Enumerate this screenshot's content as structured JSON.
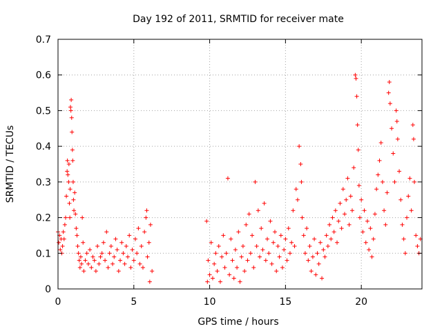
{
  "chart_data": {
    "type": "scatter",
    "title": "Day 192 of 2011, SRMTID for receiver mate",
    "xlabel": "GPS time / hours",
    "ylabel": "SRMTID / TECUs",
    "xlim": [
      0,
      24
    ],
    "ylim": [
      0,
      0.7
    ],
    "xticks": [
      0,
      5,
      10,
      15,
      20
    ],
    "yticks": [
      0,
      0.1,
      0.2,
      0.3,
      0.4,
      0.5,
      0.6,
      0.7
    ],
    "grid": true,
    "marker": "+",
    "color": "#ff0000",
    "series": [
      {
        "name": "SRMTID",
        "points": [
          [
            0.0,
            0.16
          ],
          [
            0.05,
            0.13
          ],
          [
            0.1,
            0.15
          ],
          [
            0.15,
            0.11
          ],
          [
            0.2,
            0.14
          ],
          [
            0.25,
            0.1
          ],
          [
            0.3,
            0.12
          ],
          [
            0.35,
            0.16
          ],
          [
            0.4,
            0.14
          ],
          [
            0.45,
            0.18
          ],
          [
            0.5,
            0.2
          ],
          [
            0.55,
            0.26
          ],
          [
            0.6,
            0.33
          ],
          [
            0.62,
            0.36
          ],
          [
            0.65,
            0.32
          ],
          [
            0.7,
            0.3
          ],
          [
            0.72,
            0.35
          ],
          [
            0.75,
            0.24
          ],
          [
            0.78,
            0.2
          ],
          [
            0.8,
            0.28
          ],
          [
            0.82,
            0.51
          ],
          [
            0.85,
            0.5
          ],
          [
            0.87,
            0.53
          ],
          [
            0.9,
            0.48
          ],
          [
            0.92,
            0.44
          ],
          [
            0.95,
            0.39
          ],
          [
            0.97,
            0.36
          ],
          [
            1.0,
            0.3
          ],
          [
            1.02,
            0.25
          ],
          [
            1.05,
            0.22
          ],
          [
            1.1,
            0.27
          ],
          [
            1.15,
            0.21
          ],
          [
            1.2,
            0.17
          ],
          [
            1.25,
            0.15
          ],
          [
            1.3,
            0.12
          ],
          [
            1.35,
            0.1
          ],
          [
            1.4,
            0.08
          ],
          [
            1.45,
            0.06
          ],
          [
            1.5,
            0.09
          ],
          [
            1.55,
            0.07
          ],
          [
            1.6,
            0.2
          ],
          [
            1.65,
            0.13
          ],
          [
            1.7,
            0.05
          ],
          [
            1.8,
            0.08
          ],
          [
            1.9,
            0.1
          ],
          [
            2.0,
            0.07
          ],
          [
            2.1,
            0.11
          ],
          [
            2.2,
            0.06
          ],
          [
            2.3,
            0.09
          ],
          [
            2.4,
            0.08
          ],
          [
            2.5,
            0.05
          ],
          [
            2.6,
            0.12
          ],
          [
            2.7,
            0.07
          ],
          [
            2.8,
            0.09
          ],
          [
            2.9,
            0.1
          ],
          [
            3.0,
            0.13
          ],
          [
            3.1,
            0.08
          ],
          [
            3.2,
            0.16
          ],
          [
            3.3,
            0.06
          ],
          [
            3.4,
            0.1
          ],
          [
            3.5,
            0.12
          ],
          [
            3.6,
            0.07
          ],
          [
            3.7,
            0.09
          ],
          [
            3.8,
            0.14
          ],
          [
            3.9,
            0.11
          ],
          [
            4.0,
            0.05
          ],
          [
            4.1,
            0.08
          ],
          [
            4.2,
            0.13
          ],
          [
            4.3,
            0.1
          ],
          [
            4.4,
            0.07
          ],
          [
            4.5,
            0.12
          ],
          [
            4.6,
            0.09
          ],
          [
            4.7,
            0.15
          ],
          [
            4.8,
            0.06
          ],
          [
            4.9,
            0.11
          ],
          [
            5.0,
            0.08
          ],
          [
            5.1,
            0.14
          ],
          [
            5.2,
            0.1
          ],
          [
            5.3,
            0.17
          ],
          [
            5.4,
            0.07
          ],
          [
            5.5,
            0.12
          ],
          [
            5.6,
            0.06
          ],
          [
            5.7,
            0.16
          ],
          [
            5.8,
            0.2
          ],
          [
            5.85,
            0.22
          ],
          [
            5.9,
            0.09
          ],
          [
            6.0,
            0.13
          ],
          [
            6.05,
            0.02
          ],
          [
            6.1,
            0.18
          ],
          [
            6.2,
            0.05
          ],
          [
            9.8,
            0.19
          ],
          [
            9.85,
            0.02
          ],
          [
            9.9,
            0.08
          ],
          [
            10.0,
            0.04
          ],
          [
            10.1,
            0.13
          ],
          [
            10.2,
            0.03
          ],
          [
            10.3,
            0.07
          ],
          [
            10.4,
            0.1
          ],
          [
            10.5,
            0.05
          ],
          [
            10.6,
            0.12
          ],
          [
            10.7,
            0.02
          ],
          [
            10.8,
            0.09
          ],
          [
            10.9,
            0.15
          ],
          [
            11.0,
            0.06
          ],
          [
            11.1,
            0.1
          ],
          [
            11.2,
            0.31
          ],
          [
            11.3,
            0.04
          ],
          [
            11.4,
            0.14
          ],
          [
            11.5,
            0.08
          ],
          [
            11.6,
            0.03
          ],
          [
            11.7,
            0.11
          ],
          [
            11.8,
            0.06
          ],
          [
            11.9,
            0.16
          ],
          [
            12.0,
            0.02
          ],
          [
            12.1,
            0.09
          ],
          [
            12.2,
            0.12
          ],
          [
            12.3,
            0.05
          ],
          [
            12.4,
            0.18
          ],
          [
            12.5,
            0.08
          ],
          [
            12.6,
            0.21
          ],
          [
            12.7,
            0.1
          ],
          [
            12.8,
            0.15
          ],
          [
            12.9,
            0.06
          ],
          [
            13.0,
            0.3
          ],
          [
            13.1,
            0.12
          ],
          [
            13.2,
            0.22
          ],
          [
            13.3,
            0.09
          ],
          [
            13.4,
            0.17
          ],
          [
            13.5,
            0.11
          ],
          [
            13.6,
            0.24
          ],
          [
            13.7,
            0.08
          ],
          [
            13.8,
            0.14
          ],
          [
            13.9,
            0.1
          ],
          [
            14.0,
            0.19
          ],
          [
            14.1,
            0.07
          ],
          [
            14.2,
            0.13
          ],
          [
            14.3,
            0.16
          ],
          [
            14.4,
            0.05
          ],
          [
            14.5,
            0.12
          ],
          [
            14.6,
            0.09
          ],
          [
            14.7,
            0.15
          ],
          [
            14.8,
            0.06
          ],
          [
            14.9,
            0.11
          ],
          [
            15.0,
            0.14
          ],
          [
            15.1,
            0.08
          ],
          [
            15.2,
            0.17
          ],
          [
            15.3,
            0.1
          ],
          [
            15.4,
            0.13
          ],
          [
            15.5,
            0.22
          ],
          [
            15.6,
            0.12
          ],
          [
            15.7,
            0.28
          ],
          [
            15.8,
            0.25
          ],
          [
            15.9,
            0.4
          ],
          [
            16.0,
            0.35
          ],
          [
            16.05,
            0.3
          ],
          [
            16.1,
            0.2
          ],
          [
            16.2,
            0.15
          ],
          [
            16.3,
            0.1
          ],
          [
            16.4,
            0.17
          ],
          [
            16.5,
            0.08
          ],
          [
            16.6,
            0.12
          ],
          [
            16.7,
            0.05
          ],
          [
            16.8,
            0.09
          ],
          [
            16.9,
            0.14
          ],
          [
            17.0,
            0.04
          ],
          [
            17.1,
            0.1
          ],
          [
            17.2,
            0.07
          ],
          [
            17.3,
            0.13
          ],
          [
            17.4,
            0.03
          ],
          [
            17.5,
            0.11
          ],
          [
            17.6,
            0.09
          ],
          [
            17.7,
            0.15
          ],
          [
            17.8,
            0.12
          ],
          [
            17.9,
            0.18
          ],
          [
            18.0,
            0.14
          ],
          [
            18.1,
            0.2
          ],
          [
            18.2,
            0.16
          ],
          [
            18.3,
            0.22
          ],
          [
            18.4,
            0.13
          ],
          [
            18.5,
            0.19
          ],
          [
            18.6,
            0.24
          ],
          [
            18.7,
            0.17
          ],
          [
            18.8,
            0.28
          ],
          [
            18.9,
            0.21
          ],
          [
            19.0,
            0.25
          ],
          [
            19.1,
            0.31
          ],
          [
            19.2,
            0.18
          ],
          [
            19.3,
            0.26
          ],
          [
            19.4,
            0.22
          ],
          [
            19.5,
            0.34
          ],
          [
            19.6,
            0.6
          ],
          [
            19.65,
            0.59
          ],
          [
            19.7,
            0.54
          ],
          [
            19.75,
            0.46
          ],
          [
            19.8,
            0.39
          ],
          [
            19.85,
            0.29
          ],
          [
            19.9,
            0.2
          ],
          [
            20.0,
            0.25
          ],
          [
            20.1,
            0.16
          ],
          [
            20.2,
            0.22
          ],
          [
            20.3,
            0.13
          ],
          [
            20.4,
            0.19
          ],
          [
            20.5,
            0.11
          ],
          [
            20.6,
            0.17
          ],
          [
            20.7,
            0.09
          ],
          [
            20.8,
            0.14
          ],
          [
            20.9,
            0.21
          ],
          [
            21.0,
            0.28
          ],
          [
            21.1,
            0.32
          ],
          [
            21.2,
            0.36
          ],
          [
            21.3,
            0.41
          ],
          [
            21.4,
            0.3
          ],
          [
            21.5,
            0.22
          ],
          [
            21.6,
            0.18
          ],
          [
            21.7,
            0.27
          ],
          [
            21.8,
            0.55
          ],
          [
            21.85,
            0.58
          ],
          [
            21.9,
            0.52
          ],
          [
            22.0,
            0.45
          ],
          [
            22.1,
            0.38
          ],
          [
            22.2,
            0.3
          ],
          [
            22.3,
            0.5
          ],
          [
            22.35,
            0.47
          ],
          [
            22.4,
            0.42
          ],
          [
            22.5,
            0.33
          ],
          [
            22.6,
            0.25
          ],
          [
            22.7,
            0.18
          ],
          [
            22.8,
            0.14
          ],
          [
            22.9,
            0.1
          ],
          [
            23.0,
            0.2
          ],
          [
            23.1,
            0.26
          ],
          [
            23.2,
            0.31
          ],
          [
            23.3,
            0.22
          ],
          [
            23.4,
            0.46
          ],
          [
            23.45,
            0.42
          ],
          [
            23.5,
            0.3
          ],
          [
            23.6,
            0.15
          ],
          [
            23.7,
            0.12
          ],
          [
            23.8,
            0.1
          ],
          [
            23.9,
            0.14
          ]
        ]
      }
    ]
  }
}
